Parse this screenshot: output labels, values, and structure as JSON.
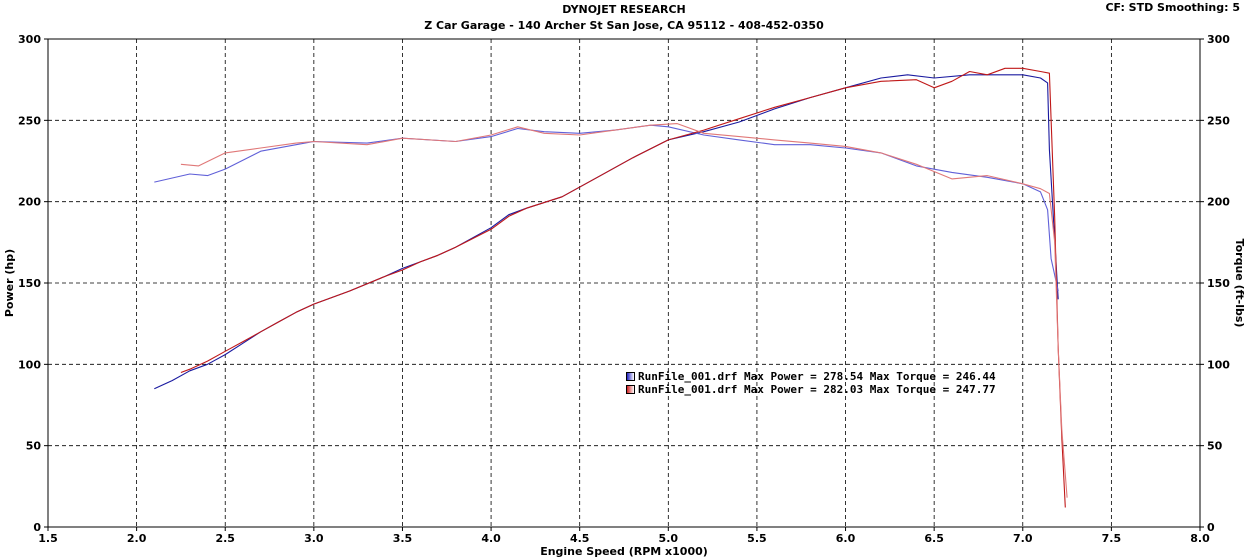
{
  "header": {
    "title": "DYNOJET RESEARCH",
    "subtitle": "Z Car Garage - 140 Archer St San Jose, CA 95112 - 408-452-0350",
    "settings": "CF: STD  Smoothing: 5"
  },
  "legend": [
    {
      "label": "RunFile_001.drf Max Power = 278.54     Max Torque = 246.44",
      "color": "#2020c0"
    },
    {
      "label": "RunFile_001.drf Max Power = 282.03     Max Torque = 247.77",
      "color": "#d02020"
    }
  ],
  "chart_data": {
    "type": "line",
    "xlabel": "Engine Speed (RPM x1000)",
    "ylabel": "Power (hp)",
    "y2label": "Torque (ft-lbs)",
    "xlim": [
      1.5,
      8.0
    ],
    "ylim": [
      0,
      300
    ],
    "y2lim": [
      0,
      300
    ],
    "xticks": [
      "1.5",
      "2.0",
      "2.5",
      "3.0",
      "3.5",
      "4.0",
      "4.5",
      "5.0",
      "5.5",
      "6.0",
      "6.5",
      "7.0",
      "7.5",
      "8.0"
    ],
    "yticks": [
      "0",
      "50",
      "100",
      "150",
      "200",
      "250",
      "300"
    ],
    "grid": true,
    "series": [
      {
        "color": "#1a1aa0",
        "kind": "power",
        "x": [
          2.1,
          2.2,
          2.3,
          2.4,
          2.5,
          2.6,
          2.7,
          2.8,
          2.9,
          3.0,
          3.2,
          3.4,
          3.5,
          3.6,
          3.7,
          3.8,
          4.0,
          4.1,
          4.2,
          4.4,
          4.6,
          4.8,
          5.0,
          5.2,
          5.4,
          5.6,
          5.8,
          6.0,
          6.2,
          6.35,
          6.5,
          6.7,
          6.9,
          7.0,
          7.1,
          7.14,
          7.15,
          7.2
        ],
        "y": [
          85,
          90,
          96,
          100,
          106,
          113,
          120,
          126,
          132,
          137,
          145,
          154,
          159,
          163,
          167,
          172,
          184,
          192,
          196,
          203,
          215,
          227,
          238,
          243,
          249,
          257,
          264,
          270,
          276,
          278,
          276,
          278,
          278,
          278,
          276,
          273,
          232,
          140
        ]
      },
      {
        "color": "#6060d8",
        "kind": "torque",
        "x": [
          2.1,
          2.3,
          2.4,
          2.5,
          2.7,
          2.9,
          3.0,
          3.3,
          3.5,
          3.8,
          4.0,
          4.15,
          4.3,
          4.5,
          4.7,
          4.9,
          5.0,
          5.2,
          5.4,
          5.6,
          5.8,
          6.0,
          6.2,
          6.4,
          6.6,
          6.8,
          7.0,
          7.1,
          7.14,
          7.16,
          7.2
        ],
        "y": [
          212,
          217,
          216,
          220,
          231,
          235,
          237,
          236,
          239,
          237,
          240,
          245,
          243,
          242,
          244,
          247,
          246,
          241,
          238,
          235,
          235,
          233,
          230,
          222,
          218,
          215,
          211,
          206,
          195,
          165,
          145
        ]
      },
      {
        "color": "#c01818",
        "kind": "power",
        "x": [
          2.25,
          2.3,
          2.4,
          2.5,
          2.6,
          2.7,
          2.8,
          2.9,
          3.0,
          3.2,
          3.4,
          3.5,
          3.6,
          3.7,
          3.8,
          4.0,
          4.1,
          4.2,
          4.4,
          4.6,
          4.8,
          5.0,
          5.2,
          5.4,
          5.6,
          5.8,
          6.0,
          6.2,
          6.4,
          6.5,
          6.6,
          6.7,
          6.8,
          6.9,
          7.0,
          7.1,
          7.15,
          7.18,
          7.2,
          7.22,
          7.24
        ],
        "y": [
          95,
          97,
          102,
          108,
          114,
          120,
          126,
          132,
          137,
          145,
          154,
          158,
          163,
          167,
          172,
          183,
          191,
          196,
          203,
          215,
          227,
          238,
          244,
          251,
          258,
          264,
          270,
          274,
          275,
          270,
          274,
          280,
          278,
          282,
          282,
          280,
          279,
          190,
          110,
          55,
          12
        ]
      },
      {
        "color": "#e07878",
        "kind": "torque",
        "x": [
          2.25,
          2.35,
          2.5,
          2.7,
          2.9,
          3.0,
          3.3,
          3.5,
          3.8,
          4.0,
          4.15,
          4.3,
          4.5,
          4.7,
          4.9,
          5.05,
          5.2,
          5.4,
          5.6,
          5.8,
          6.0,
          6.2,
          6.4,
          6.6,
          6.8,
          7.0,
          7.1,
          7.15,
          7.18,
          7.2,
          7.22,
          7.25
        ],
        "y": [
          223,
          222,
          230,
          233,
          236,
          237,
          235,
          239,
          237,
          241,
          246,
          242,
          241,
          244,
          247,
          248,
          242,
          240,
          238,
          236,
          234,
          230,
          223,
          214,
          216,
          211,
          208,
          205,
          175,
          110,
          60,
          18
        ]
      }
    ]
  }
}
